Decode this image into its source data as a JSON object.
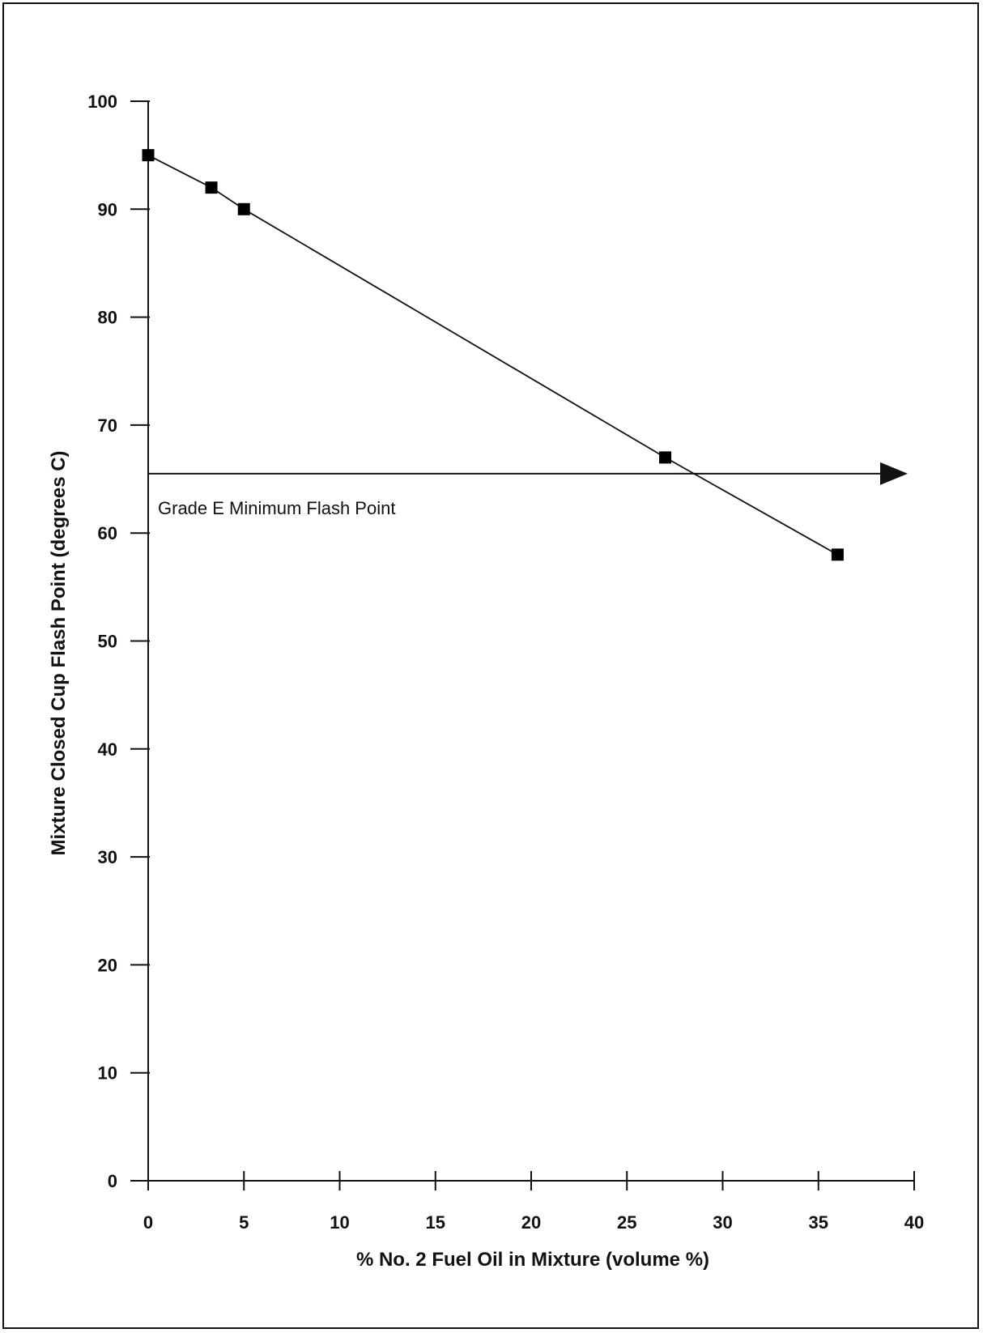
{
  "chart_data": {
    "type": "line",
    "title": "",
    "xlabel": "% No. 2 Fuel Oil in Mixture (volume %)",
    "ylabel": "Mixture Closed Cup Flash Point (degrees C)",
    "xlim": [
      0,
      40
    ],
    "ylim": [
      0,
      100
    ],
    "xticks": [
      0,
      5,
      10,
      15,
      20,
      25,
      30,
      35,
      40
    ],
    "yticks": [
      0,
      10,
      20,
      30,
      40,
      50,
      60,
      70,
      80,
      90,
      100
    ],
    "grid": false,
    "legend": "none",
    "series": [
      {
        "x": [
          0,
          3.3,
          5,
          27,
          36
        ],
        "y": [
          95,
          92,
          90,
          67,
          58
        ],
        "marker": "square",
        "color": "#000000"
      }
    ],
    "reference_line": {
      "y": 65.5,
      "label": "Grade E Minimum Flash Point",
      "arrow": "right"
    }
  }
}
